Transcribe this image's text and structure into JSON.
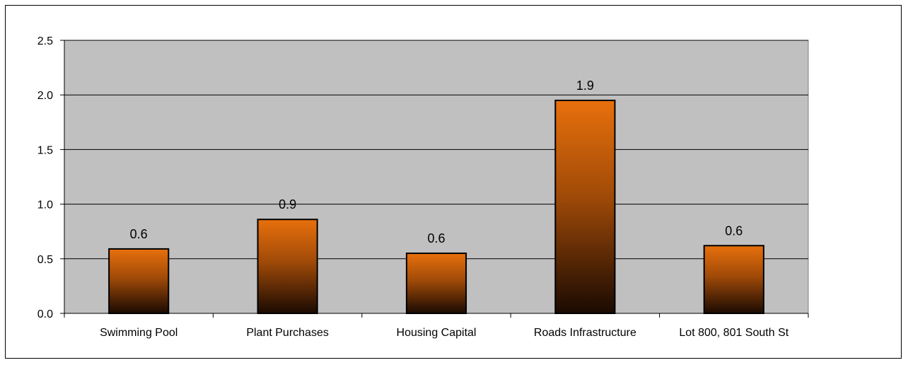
{
  "chart_data": {
    "type": "bar",
    "title": "",
    "xlabel": "",
    "ylabel": "",
    "categories": [
      "Swimming Pool",
      "Plant Purchases",
      "Housing Capital",
      "Roads Infrastructure",
      "Lot 800, 801 South St"
    ],
    "values": [
      0.59,
      0.86,
      0.55,
      1.95,
      0.62
    ],
    "data_labels": [
      "0.6",
      "0.9",
      "0.6",
      "1.9",
      "0.6"
    ],
    "ylim": [
      0,
      2.5
    ],
    "yticks": [
      0.0,
      0.5,
      1.0,
      1.5,
      2.0,
      2.5
    ],
    "ytick_labels": [
      "0.0",
      "0.5",
      "1.0",
      "1.5",
      "2.0",
      "2.5"
    ],
    "grid": true,
    "legend": "none",
    "colors": {
      "plot_background": "#c0c0c0",
      "bar_top": "#e8700c",
      "bar_mid": "#a04a08",
      "bar_bottom": "#1a0a02",
      "bar_outline": "#000000",
      "gridline": "#000000"
    }
  }
}
